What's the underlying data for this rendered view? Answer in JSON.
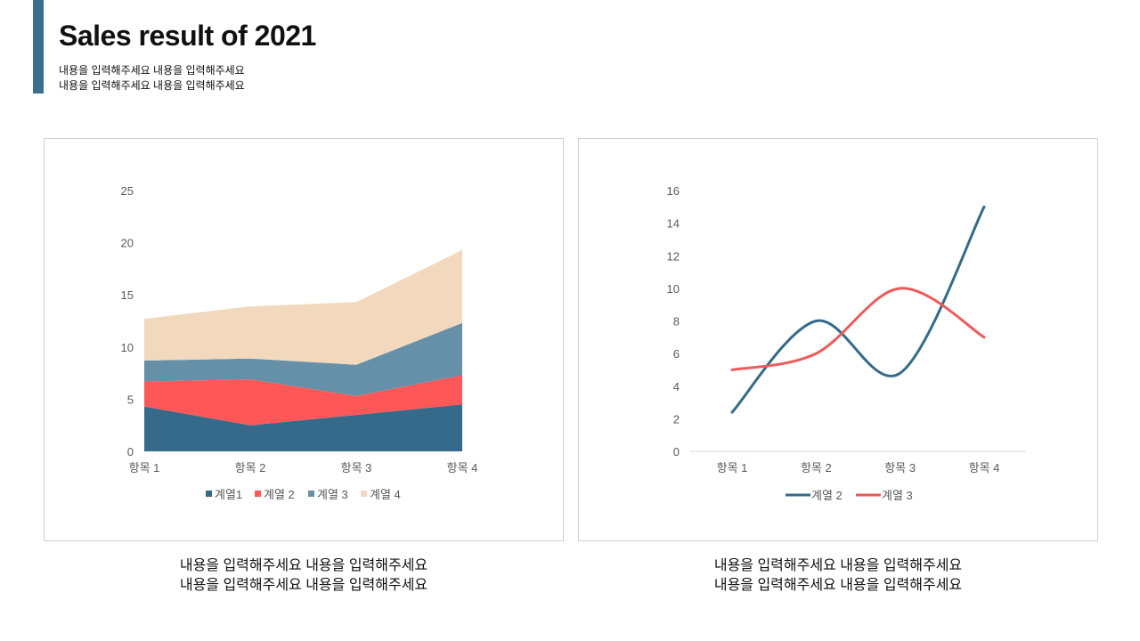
{
  "header": {
    "title": "Sales result of 2021",
    "subtitle_lines": [
      "내용을 입력해주세요 내용을 입력해주세요",
      "내용을 입력해주세요 내용을 입력해주세요"
    ],
    "accent_color": "#3b6e8f"
  },
  "captions": {
    "left": [
      "내용을 입력해주세요 내용을 입력해주세요",
      "내용을 입력해주세요 내용을 입력해주세요"
    ],
    "right": [
      "내용을 입력해주세요 내용을 입력해주세요",
      "내용을 입력해주세요 내용을 입력해주세요"
    ]
  },
  "chart_data": [
    {
      "type": "area",
      "stacked": true,
      "categories": [
        "항목 1",
        "항목 2",
        "항목 3",
        "항목 4"
      ],
      "series": [
        {
          "name": "계열1",
          "values": [
            4.3,
            2.5,
            3.5,
            4.5
          ],
          "color": "#356a8a"
        },
        {
          "name": "계열 2",
          "values": [
            2.4,
            4.4,
            1.8,
            2.8
          ],
          "color": "#fe5757"
        },
        {
          "name": "계열 3",
          "values": [
            2.0,
            2.0,
            3.0,
            5.0
          ],
          "color": "#6590a8"
        },
        {
          "name": "계열 4",
          "values": [
            4.0,
            5.0,
            6.0,
            7.0
          ],
          "color": "#f2d9bd"
        }
      ],
      "ylim": [
        0,
        25
      ],
      "yticks": [
        0,
        5,
        10,
        15,
        20,
        25
      ],
      "grid": false,
      "legend": "bottom"
    },
    {
      "type": "line",
      "smooth": true,
      "categories": [
        "항목 1",
        "항목 2",
        "항목 3",
        "항목 4"
      ],
      "series": [
        {
          "name": "계열 2",
          "values": [
            2.4,
            8,
            4.8,
            15
          ],
          "color": "#356a8a"
        },
        {
          "name": "계열 3",
          "values": [
            5,
            6,
            10,
            7
          ],
          "color": "#ed5a5a"
        }
      ],
      "ylim": [
        0,
        16
      ],
      "yticks": [
        0,
        2,
        4,
        6,
        8,
        10,
        12,
        14,
        16
      ],
      "grid": false,
      "legend": "bottom"
    }
  ]
}
